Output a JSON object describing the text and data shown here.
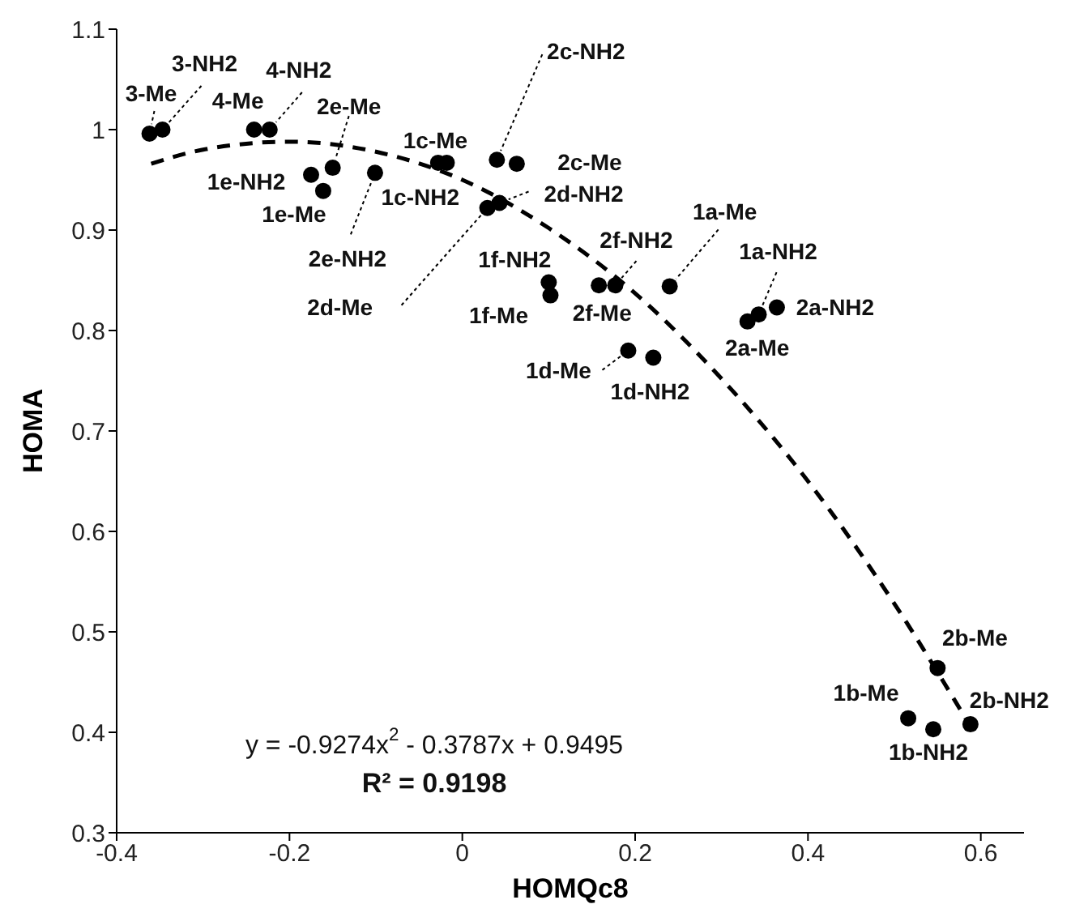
{
  "chart_data": {
    "type": "scatter",
    "xlabel": "HOMQc8",
    "ylabel": "HOMA",
    "xlim": [
      -0.4,
      0.65
    ],
    "xticks": [
      -0.4,
      -0.2,
      0,
      0.2,
      0.4,
      0.6
    ],
    "ylim": [
      0.3,
      1.1
    ],
    "yticks": [
      0.3,
      0.4,
      0.5,
      0.6,
      0.7,
      0.8,
      0.9,
      1,
      1.1
    ],
    "marker": "circle",
    "series": [
      {
        "color": "#000000",
        "x": [
          -0.362,
          -0.347,
          -0.241,
          -0.223,
          -0.15,
          -0.175,
          -0.161,
          -0.101,
          -0.018,
          -0.028,
          0.04,
          0.063,
          0.043,
          0.029,
          0.1,
          0.102,
          0.158,
          0.177,
          0.24,
          0.343,
          0.364,
          0.33,
          0.192,
          0.221,
          0.55,
          0.516,
          0.545,
          0.588
        ],
        "values": [
          0.996,
          1.0,
          1.0,
          1.0,
          0.962,
          0.955,
          0.939,
          0.957,
          0.967,
          0.967,
          0.97,
          0.966,
          0.927,
          0.922,
          0.848,
          0.835,
          0.845,
          0.845,
          0.844,
          0.816,
          0.823,
          0.809,
          0.78,
          0.773,
          0.464,
          0.414,
          0.403,
          0.408
        ]
      },
      {
        "type": "line",
        "color": "#000000",
        "line_style": "dashed",
        "marker": "none",
        "x": [
          -0.36,
          -0.3,
          -0.2,
          -0.1,
          0,
          0.1,
          0.2,
          0.3,
          0.4,
          0.5,
          0.59
        ],
        "values": [
          0.966,
          0.98,
          0.988,
          0.978,
          0.95,
          0.902,
          0.837,
          0.752,
          0.65,
          0.528,
          0.403
        ]
      }
    ],
    "annotations": [
      {
        "text": "3-Me",
        "x": -0.362,
        "y": 0.996
      },
      {
        "text": "3-NH2",
        "x": -0.347,
        "y": 1.0
      },
      {
        "text": "4-Me",
        "x": -0.241,
        "y": 1.0
      },
      {
        "text": "4-NH2",
        "x": -0.223,
        "y": 1.0
      },
      {
        "text": "2e-Me",
        "x": -0.15,
        "y": 0.962
      },
      {
        "text": "1e-NH2",
        "x": -0.175,
        "y": 0.955
      },
      {
        "text": "1e-Me",
        "x": -0.161,
        "y": 0.939
      },
      {
        "text": "2e-NH2",
        "x": -0.101,
        "y": 0.957
      },
      {
        "text": "1c-Me",
        "x": -0.018,
        "y": 0.967
      },
      {
        "text": "1c-NH2",
        "x": -0.028,
        "y": 0.967
      },
      {
        "text": "2c-NH2",
        "x": 0.04,
        "y": 0.97
      },
      {
        "text": "2c-Me",
        "x": 0.063,
        "y": 0.966
      },
      {
        "text": "2d-NH2",
        "x": 0.043,
        "y": 0.927
      },
      {
        "text": "2d-Me",
        "x": 0.029,
        "y": 0.922
      },
      {
        "text": "1f-NH2",
        "x": 0.1,
        "y": 0.848
      },
      {
        "text": "1f-Me",
        "x": 0.102,
        "y": 0.835
      },
      {
        "text": "2f-Me",
        "x": 0.158,
        "y": 0.845
      },
      {
        "text": "2f-NH2",
        "x": 0.177,
        "y": 0.845
      },
      {
        "text": "1a-Me",
        "x": 0.24,
        "y": 0.844
      },
      {
        "text": "1a-NH2",
        "x": 0.343,
        "y": 0.816
      },
      {
        "text": "2a-NH2",
        "x": 0.364,
        "y": 0.823
      },
      {
        "text": "2a-Me",
        "x": 0.33,
        "y": 0.809
      },
      {
        "text": "1d-Me",
        "x": 0.192,
        "y": 0.78
      },
      {
        "text": "1d-NH2",
        "x": 0.221,
        "y": 0.773
      },
      {
        "text": "2b-Me",
        "x": 0.55,
        "y": 0.464
      },
      {
        "text": "1b-Me",
        "x": 0.516,
        "y": 0.414
      },
      {
        "text": "1b-NH2",
        "x": 0.545,
        "y": 0.403
      },
      {
        "text": "2b-NH2",
        "x": 0.588,
        "y": 0.408
      },
      "y = -0.9274x$^{2}$ - 0.3787x + 0.9495",
      "R² = 0.9198"
    ]
  }
}
